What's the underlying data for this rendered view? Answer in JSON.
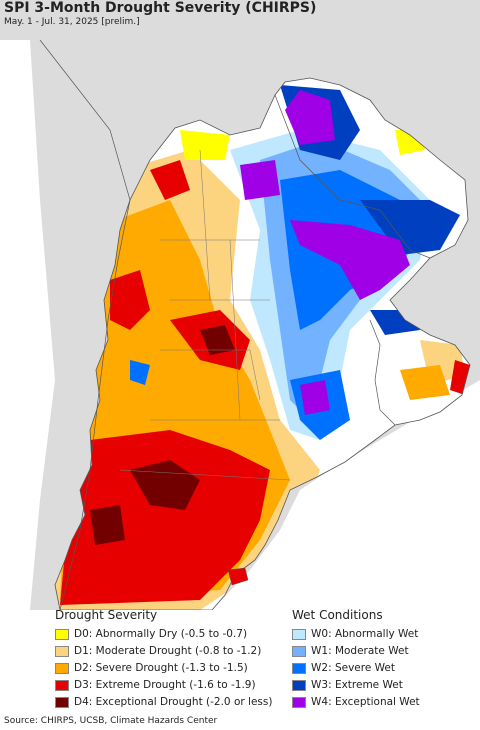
{
  "title": "SPI 3-Month Drought Severity (CHIRPS)",
  "subtitle": "May. 1 - Jul. 31, 2025 [prelim.]",
  "legend": {
    "drought_title": "Drought Severity",
    "wet_title": "Wet Conditions",
    "drought": [
      {
        "label": "D0: Abnormally Dry (-0.5 to -0.7)",
        "color": "#ffff00"
      },
      {
        "label": "D1: Moderate Drought (-0.8 to -1.2)",
        "color": "#fcd37f"
      },
      {
        "label": "D2: Severe Drought (-1.3 to -1.5)",
        "color": "#ffaa00"
      },
      {
        "label": "D3: Extreme Drought (-1.6 to -1.9)",
        "color": "#e60000"
      },
      {
        "label": "D4: Exceptional Drought (-2.0 or less)",
        "color": "#730000"
      }
    ],
    "wet": [
      {
        "label": "W0: Abnormally Wet",
        "color": "#bfe8ff"
      },
      {
        "label": "W1: Moderate Wet",
        "color": "#73b2ff"
      },
      {
        "label": "W2: Severe Wet",
        "color": "#0070ff"
      },
      {
        "label": "W3: Extreme Wet",
        "color": "#0040c0"
      },
      {
        "label": "W4: Exceptional Wet",
        "color": "#a000e6"
      }
    ]
  },
  "source": "Source: CHIRPS, UCSB, Climate Hazards Center",
  "colors": {
    "land_neutral": "#ffffff",
    "outside_region": "#dcdcdc",
    "border": "#555555"
  }
}
